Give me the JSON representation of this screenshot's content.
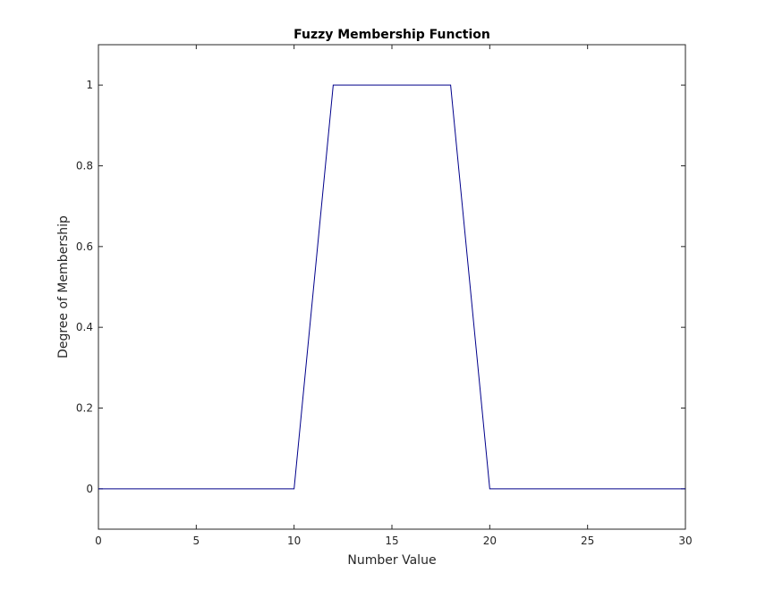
{
  "chart_data": {
    "type": "line",
    "title": "Fuzzy Membership Function",
    "xlabel": "Number Value",
    "ylabel": "Degree of Membership",
    "xlim": [
      0,
      30
    ],
    "ylim": [
      -0.1,
      1.1
    ],
    "xticks": [
      0,
      5,
      10,
      15,
      20,
      25,
      30
    ],
    "yticks": [
      0,
      0.2,
      0.4,
      0.6,
      0.8,
      1
    ],
    "xtick_labels": [
      "0",
      "5",
      "10",
      "15",
      "20",
      "25",
      "30"
    ],
    "ytick_labels": [
      "0",
      "0.2",
      "0.4",
      "0.6",
      "0.8",
      "1"
    ],
    "grid": false,
    "series": [
      {
        "color": "#00008b",
        "x": [
          0,
          10,
          12,
          18,
          20,
          30
        ],
        "y": [
          0,
          0,
          1,
          1,
          0,
          0
        ]
      }
    ]
  }
}
